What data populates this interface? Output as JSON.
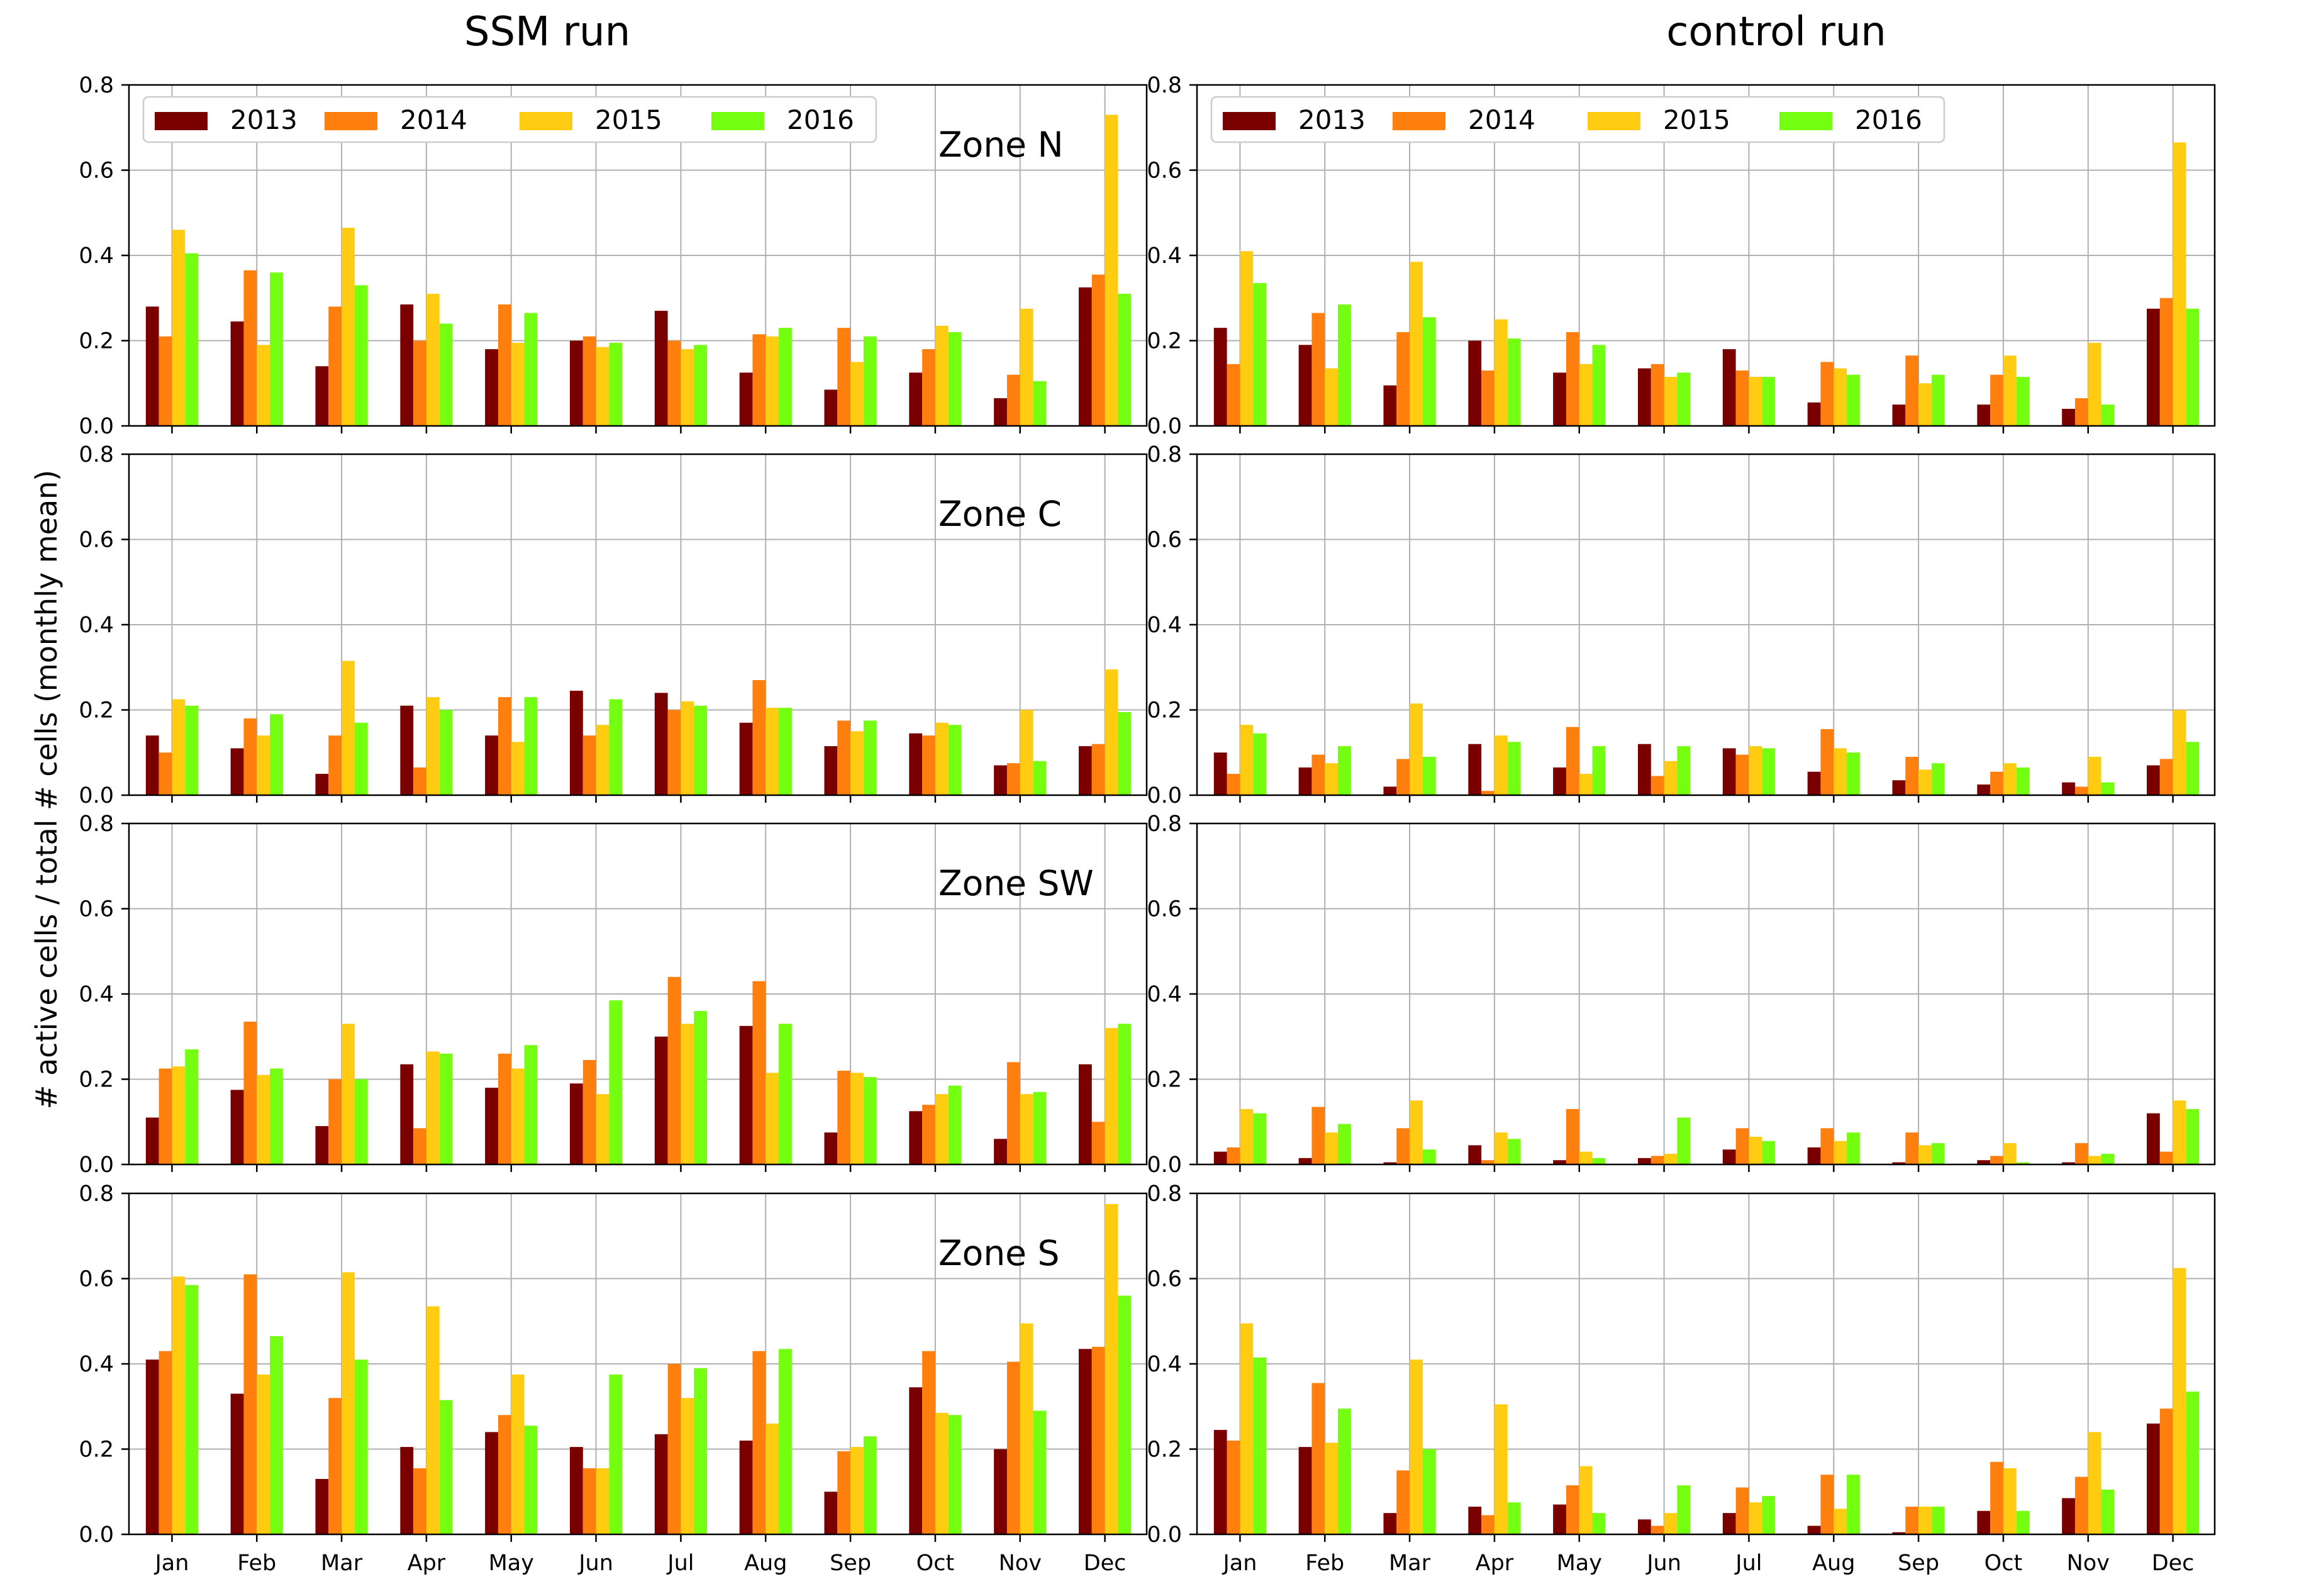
{
  "figure": {
    "ylabel": "# active cells / total # cells (monthly mean)",
    "columns": [
      {
        "title": "SSM run"
      },
      {
        "title": "control run"
      }
    ]
  },
  "legend_colors": {
    "2013": "#7a0000",
    "2014": "#ff7f0e",
    "2015": "#ffcc12",
    "2016": "#74ff11"
  },
  "chart_data": [
    {
      "type": "bar",
      "column": "SSM run",
      "zone_label": "Zone N",
      "show_legend": true,
      "categories": [
        "Jan",
        "Feb",
        "Mar",
        "Apr",
        "May",
        "Jun",
        "Jul",
        "Aug",
        "Sep",
        "Oct",
        "Nov",
        "Dec"
      ],
      "ylim": [
        0,
        0.8
      ],
      "yticks": [
        "0.0",
        "0.2",
        "0.4",
        "0.6",
        "0.8"
      ],
      "grid": true,
      "series": [
        {
          "name": "2013",
          "values": [
            0.28,
            0.245,
            0.14,
            0.285,
            0.18,
            0.2,
            0.27,
            0.125,
            0.085,
            0.125,
            0.065,
            0.325
          ]
        },
        {
          "name": "2014",
          "values": [
            0.21,
            0.365,
            0.28,
            0.2,
            0.285,
            0.21,
            0.2,
            0.215,
            0.23,
            0.18,
            0.12,
            0.355
          ]
        },
        {
          "name": "2015",
          "values": [
            0.46,
            0.19,
            0.465,
            0.31,
            0.195,
            0.185,
            0.18,
            0.21,
            0.15,
            0.235,
            0.275,
            0.73
          ]
        },
        {
          "name": "2016",
          "values": [
            0.405,
            0.36,
            0.33,
            0.24,
            0.265,
            0.195,
            0.19,
            0.23,
            0.21,
            0.22,
            0.105,
            0.31
          ]
        }
      ]
    },
    {
      "type": "bar",
      "column": "control run",
      "zone_label": "",
      "show_legend": true,
      "categories": [
        "Jan",
        "Feb",
        "Mar",
        "Apr",
        "May",
        "Jun",
        "Jul",
        "Aug",
        "Sep",
        "Oct",
        "Nov",
        "Dec"
      ],
      "ylim": [
        0,
        0.8
      ],
      "yticks": [
        "0.0",
        "0.2",
        "0.4",
        "0.6",
        "0.8"
      ],
      "grid": true,
      "series": [
        {
          "name": "2013",
          "values": [
            0.23,
            0.19,
            0.095,
            0.2,
            0.125,
            0.135,
            0.18,
            0.055,
            0.05,
            0.05,
            0.04,
            0.275
          ]
        },
        {
          "name": "2014",
          "values": [
            0.145,
            0.265,
            0.22,
            0.13,
            0.22,
            0.145,
            0.13,
            0.15,
            0.165,
            0.12,
            0.065,
            0.3
          ]
        },
        {
          "name": "2015",
          "values": [
            0.41,
            0.135,
            0.385,
            0.25,
            0.145,
            0.115,
            0.115,
            0.135,
            0.1,
            0.165,
            0.195,
            0.665
          ]
        },
        {
          "name": "2016",
          "values": [
            0.335,
            0.285,
            0.255,
            0.205,
            0.19,
            0.125,
            0.115,
            0.12,
            0.12,
            0.115,
            0.05,
            0.275
          ]
        }
      ]
    },
    {
      "type": "bar",
      "column": "SSM run",
      "zone_label": "Zone C",
      "show_legend": false,
      "categories": [
        "Jan",
        "Feb",
        "Mar",
        "Apr",
        "May",
        "Jun",
        "Jul",
        "Aug",
        "Sep",
        "Oct",
        "Nov",
        "Dec"
      ],
      "ylim": [
        0,
        0.8
      ],
      "yticks": [
        "0.0",
        "0.2",
        "0.4",
        "0.6",
        "0.8"
      ],
      "grid": true,
      "series": [
        {
          "name": "2013",
          "values": [
            0.14,
            0.11,
            0.05,
            0.21,
            0.14,
            0.245,
            0.24,
            0.17,
            0.115,
            0.145,
            0.07,
            0.115
          ]
        },
        {
          "name": "2014",
          "values": [
            0.1,
            0.18,
            0.14,
            0.065,
            0.23,
            0.14,
            0.2,
            0.27,
            0.175,
            0.14,
            0.075,
            0.12
          ]
        },
        {
          "name": "2015",
          "values": [
            0.225,
            0.14,
            0.315,
            0.23,
            0.125,
            0.165,
            0.22,
            0.205,
            0.15,
            0.17,
            0.2,
            0.295
          ]
        },
        {
          "name": "2016",
          "values": [
            0.21,
            0.19,
            0.17,
            0.2,
            0.23,
            0.225,
            0.21,
            0.205,
            0.175,
            0.165,
            0.08,
            0.195
          ]
        }
      ]
    },
    {
      "type": "bar",
      "column": "control run",
      "zone_label": "",
      "show_legend": false,
      "categories": [
        "Jan",
        "Feb",
        "Mar",
        "Apr",
        "May",
        "Jun",
        "Jul",
        "Aug",
        "Sep",
        "Oct",
        "Nov",
        "Dec"
      ],
      "ylim": [
        0,
        0.8
      ],
      "yticks": [
        "0.0",
        "0.2",
        "0.4",
        "0.6",
        "0.8"
      ],
      "grid": true,
      "series": [
        {
          "name": "2013",
          "values": [
            0.1,
            0.065,
            0.02,
            0.12,
            0.065,
            0.12,
            0.11,
            0.055,
            0.035,
            0.025,
            0.03,
            0.07
          ]
        },
        {
          "name": "2014",
          "values": [
            0.05,
            0.095,
            0.085,
            0.01,
            0.16,
            0.045,
            0.095,
            0.155,
            0.09,
            0.055,
            0.02,
            0.085
          ]
        },
        {
          "name": "2015",
          "values": [
            0.165,
            0.075,
            0.215,
            0.14,
            0.05,
            0.08,
            0.115,
            0.11,
            0.06,
            0.075,
            0.09,
            0.2
          ]
        },
        {
          "name": "2016",
          "values": [
            0.145,
            0.115,
            0.09,
            0.125,
            0.115,
            0.115,
            0.11,
            0.1,
            0.075,
            0.065,
            0.03,
            0.125
          ]
        }
      ]
    },
    {
      "type": "bar",
      "column": "SSM run",
      "zone_label": "Zone SW",
      "show_legend": false,
      "categories": [
        "Jan",
        "Feb",
        "Mar",
        "Apr",
        "May",
        "Jun",
        "Jul",
        "Aug",
        "Sep",
        "Oct",
        "Nov",
        "Dec"
      ],
      "ylim": [
        0,
        0.8
      ],
      "yticks": [
        "0.0",
        "0.2",
        "0.4",
        "0.6",
        "0.8"
      ],
      "grid": true,
      "series": [
        {
          "name": "2013",
          "values": [
            0.11,
            0.175,
            0.09,
            0.235,
            0.18,
            0.19,
            0.3,
            0.325,
            0.075,
            0.125,
            0.06,
            0.235
          ]
        },
        {
          "name": "2014",
          "values": [
            0.225,
            0.335,
            0.2,
            0.085,
            0.26,
            0.245,
            0.44,
            0.43,
            0.22,
            0.14,
            0.24,
            0.1
          ]
        },
        {
          "name": "2015",
          "values": [
            0.23,
            0.21,
            0.33,
            0.265,
            0.225,
            0.165,
            0.33,
            0.215,
            0.215,
            0.165,
            0.165,
            0.32
          ]
        },
        {
          "name": "2016",
          "values": [
            0.27,
            0.225,
            0.2,
            0.26,
            0.28,
            0.385,
            0.36,
            0.33,
            0.205,
            0.185,
            0.17,
            0.33
          ]
        }
      ]
    },
    {
      "type": "bar",
      "column": "control run",
      "zone_label": "",
      "show_legend": false,
      "categories": [
        "Jan",
        "Feb",
        "Mar",
        "Apr",
        "May",
        "Jun",
        "Jul",
        "Aug",
        "Sep",
        "Oct",
        "Nov",
        "Dec"
      ],
      "ylim": [
        0,
        0.8
      ],
      "yticks": [
        "0.0",
        "0.2",
        "0.4",
        "0.6",
        "0.8"
      ],
      "grid": true,
      "series": [
        {
          "name": "2013",
          "values": [
            0.03,
            0.015,
            0.005,
            0.045,
            0.01,
            0.015,
            0.035,
            0.04,
            0.005,
            0.01,
            0.005,
            0.12
          ]
        },
        {
          "name": "2014",
          "values": [
            0.04,
            0.135,
            0.085,
            0.01,
            0.13,
            0.02,
            0.085,
            0.085,
            0.075,
            0.02,
            0.05,
            0.03
          ]
        },
        {
          "name": "2015",
          "values": [
            0.13,
            0.075,
            0.15,
            0.075,
            0.03,
            0.025,
            0.065,
            0.055,
            0.045,
            0.05,
            0.02,
            0.15
          ]
        },
        {
          "name": "2016",
          "values": [
            0.12,
            0.095,
            0.035,
            0.06,
            0.015,
            0.11,
            0.055,
            0.075,
            0.05,
            0.005,
            0.025,
            0.13
          ]
        }
      ]
    },
    {
      "type": "bar",
      "column": "SSM run",
      "zone_label": "Zone S",
      "show_legend": false,
      "categories": [
        "Jan",
        "Feb",
        "Mar",
        "Apr",
        "May",
        "Jun",
        "Jul",
        "Aug",
        "Sep",
        "Oct",
        "Nov",
        "Dec"
      ],
      "ylim": [
        0,
        0.8
      ],
      "yticks": [
        "0.0",
        "0.2",
        "0.4",
        "0.6",
        "0.8"
      ],
      "grid": true,
      "series": [
        {
          "name": "2013",
          "values": [
            0.41,
            0.33,
            0.13,
            0.205,
            0.24,
            0.205,
            0.235,
            0.22,
            0.1,
            0.345,
            0.2,
            0.435
          ]
        },
        {
          "name": "2014",
          "values": [
            0.43,
            0.61,
            0.32,
            0.155,
            0.28,
            0.155,
            0.4,
            0.43,
            0.195,
            0.43,
            0.405,
            0.44
          ]
        },
        {
          "name": "2015",
          "values": [
            0.605,
            0.375,
            0.615,
            0.535,
            0.375,
            0.155,
            0.32,
            0.26,
            0.205,
            0.285,
            0.495,
            0.775
          ]
        },
        {
          "name": "2016",
          "values": [
            0.585,
            0.465,
            0.41,
            0.315,
            0.255,
            0.375,
            0.39,
            0.435,
            0.23,
            0.28,
            0.29,
            0.56
          ]
        }
      ]
    },
    {
      "type": "bar",
      "column": "control run",
      "zone_label": "",
      "show_legend": false,
      "categories": [
        "Jan",
        "Feb",
        "Mar",
        "Apr",
        "May",
        "Jun",
        "Jul",
        "Aug",
        "Sep",
        "Oct",
        "Nov",
        "Dec"
      ],
      "ylim": [
        0,
        0.8
      ],
      "yticks": [
        "0.0",
        "0.2",
        "0.4",
        "0.6",
        "0.8"
      ],
      "grid": true,
      "series": [
        {
          "name": "2013",
          "values": [
            0.245,
            0.205,
            0.05,
            0.065,
            0.07,
            0.035,
            0.05,
            0.02,
            0.005,
            0.055,
            0.085,
            0.26
          ]
        },
        {
          "name": "2014",
          "values": [
            0.22,
            0.355,
            0.15,
            0.045,
            0.115,
            0.02,
            0.11,
            0.14,
            0.065,
            0.17,
            0.135,
            0.295
          ]
        },
        {
          "name": "2015",
          "values": [
            0.495,
            0.215,
            0.41,
            0.305,
            0.16,
            0.05,
            0.075,
            0.06,
            0.065,
            0.155,
            0.24,
            0.625
          ]
        },
        {
          "name": "2016",
          "values": [
            0.415,
            0.295,
            0.2,
            0.075,
            0.05,
            0.115,
            0.09,
            0.14,
            0.065,
            0.055,
            0.105,
            0.335
          ]
        }
      ]
    }
  ]
}
